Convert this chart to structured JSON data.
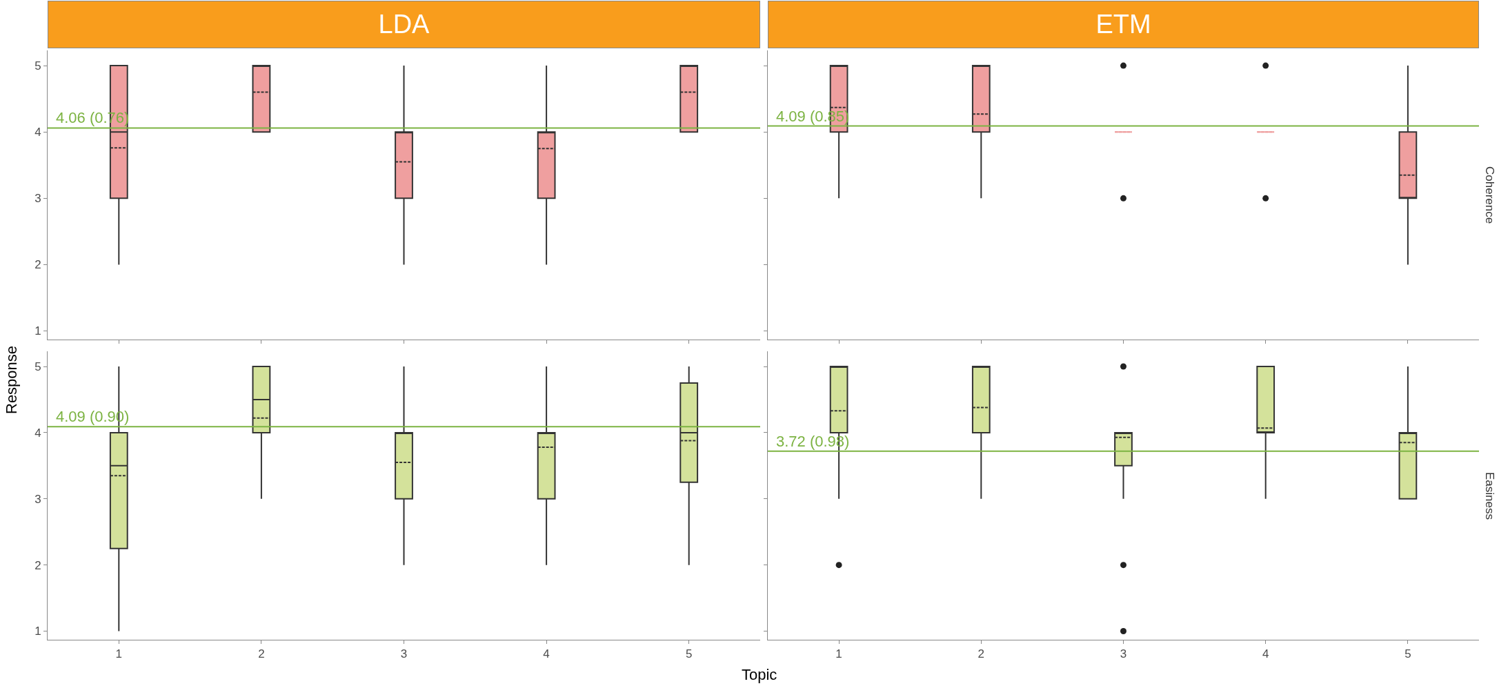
{
  "chart_data": [
    {
      "type": "box",
      "title": "LDA",
      "ylabel": "Response",
      "categories": [
        "1",
        "2",
        "3",
        "4",
        "5"
      ],
      "ylim": [
        0.87,
        5.23
      ],
      "yticks": [
        1,
        2,
        3,
        4,
        5
      ],
      "tick_labels": "y",
      "grid": false,
      "series": [
        {
          "color": "#ef9f9f",
          "boxes": [
            {
              "low": 2,
              "q1": 3,
              "median": 4,
              "q3": 5,
              "high": 5,
              "mean": 3.76
            },
            {
              "low": 4,
              "q1": 4,
              "median": 5,
              "q3": 5,
              "high": 5,
              "mean": 4.6
            },
            {
              "low": 2,
              "q1": 3,
              "median": 4,
              "q3": 4,
              "high": 5,
              "mean": 3.55
            },
            {
              "low": 2,
              "q1": 3,
              "median": 4,
              "q3": 4,
              "high": 5,
              "mean": 3.75
            },
            {
              "low": 4,
              "q1": 4,
              "median": 5,
              "q3": 5,
              "high": 5,
              "mean": 4.6
            }
          ]
        }
      ],
      "ref_lines": [
        {
          "axis": "y",
          "value": 4.06,
          "label": "4.06 (0.76)",
          "color": "#7cb342"
        }
      ]
    },
    {
      "type": "box",
      "title": "ETM",
      "y2label": "Coherence",
      "categories": [
        "1",
        "2",
        "3",
        "4",
        "5"
      ],
      "ylim": [
        0.87,
        5.23
      ],
      "yticks": [
        1,
        2,
        3,
        4,
        5
      ],
      "tick_labels": false,
      "grid": false,
      "series": [
        {
          "color": "#ef9f9f",
          "boxes": [
            {
              "low": 3,
              "q1": 4,
              "median": 5,
              "q3": 5,
              "high": 5,
              "mean": 4.37
            },
            {
              "low": 3,
              "q1": 4,
              "median": 5,
              "q3": 5,
              "high": 5,
              "mean": 4.27
            },
            {
              "low": 4,
              "q1": 4,
              "median": 4,
              "q3": 4,
              "high": 4,
              "mean": 4,
              "outliers": [
                3,
                5
              ]
            },
            {
              "low": 4,
              "q1": 4,
              "median": 4,
              "q3": 4,
              "high": 4,
              "mean": 4,
              "outliers": [
                3,
                5
              ]
            },
            {
              "low": 2,
              "q1": 3,
              "median": 3,
              "q3": 4,
              "high": 5,
              "mean": 3.35
            }
          ]
        }
      ],
      "ref_lines": [
        {
          "axis": "y",
          "value": 4.09,
          "label": "4.09 (0.85)",
          "color": "#7cb342"
        }
      ]
    },
    {
      "type": "box",
      "xlabel": "Topic",
      "categories": [
        "1",
        "2",
        "3",
        "4",
        "5"
      ],
      "ylim": [
        0.87,
        5.23
      ],
      "yticks": [
        1,
        2,
        3,
        4,
        5
      ],
      "grid": false,
      "series": [
        {
          "color": "#d4e29b",
          "boxes": [
            {
              "low": 1,
              "q1": 2.25,
              "median": 3.5,
              "q3": 4,
              "high": 5,
              "mean": 3.35
            },
            {
              "low": 3,
              "q1": 4,
              "median": 4.5,
              "q3": 5,
              "high": 5,
              "mean": 4.22
            },
            {
              "low": 2,
              "q1": 3,
              "median": 4,
              "q3": 4,
              "high": 5,
              "mean": 3.55
            },
            {
              "low": 2,
              "q1": 3,
              "median": 4,
              "q3": 4,
              "high": 5,
              "mean": 3.78
            },
            {
              "low": 2,
              "q1": 3.25,
              "median": 4,
              "q3": 4.75,
              "high": 5,
              "mean": 3.88
            }
          ]
        }
      ],
      "ref_lines": [
        {
          "axis": "y",
          "value": 4.09,
          "label": "4.09 (0.90)",
          "color": "#7cb342"
        }
      ]
    },
    {
      "type": "box",
      "y2label": "Easiness",
      "categories": [
        "1",
        "2",
        "3",
        "4",
        "5"
      ],
      "ylim": [
        0.87,
        5.23
      ],
      "yticks": [
        1,
        2,
        3,
        4,
        5
      ],
      "tick_labels": "x",
      "grid": false,
      "series": [
        {
          "color": "#d4e29b",
          "boxes": [
            {
              "low": 3,
              "q1": 4,
              "median": 5,
              "q3": 5,
              "high": 5,
              "mean": 4.33,
              "outliers": [
                2
              ]
            },
            {
              "low": 3,
              "q1": 4,
              "median": 5,
              "q3": 5,
              "high": 5,
              "mean": 4.38
            },
            {
              "low": 3,
              "q1": 3.5,
              "median": 4,
              "q3": 4,
              "high": 4,
              "mean": 3.93,
              "outliers": [
                1,
                2,
                5
              ]
            },
            {
              "low": 3,
              "q1": 4,
              "median": 4,
              "q3": 5,
              "high": 5,
              "mean": 4.07
            },
            {
              "low": 3,
              "q1": 3,
              "median": 4,
              "q3": 4,
              "high": 5,
              "mean": 3.85
            }
          ]
        }
      ],
      "ref_lines": [
        {
          "axis": "y",
          "value": 3.72,
          "label": "3.72 (0.98)",
          "color": "#7cb342"
        }
      ]
    }
  ]
}
